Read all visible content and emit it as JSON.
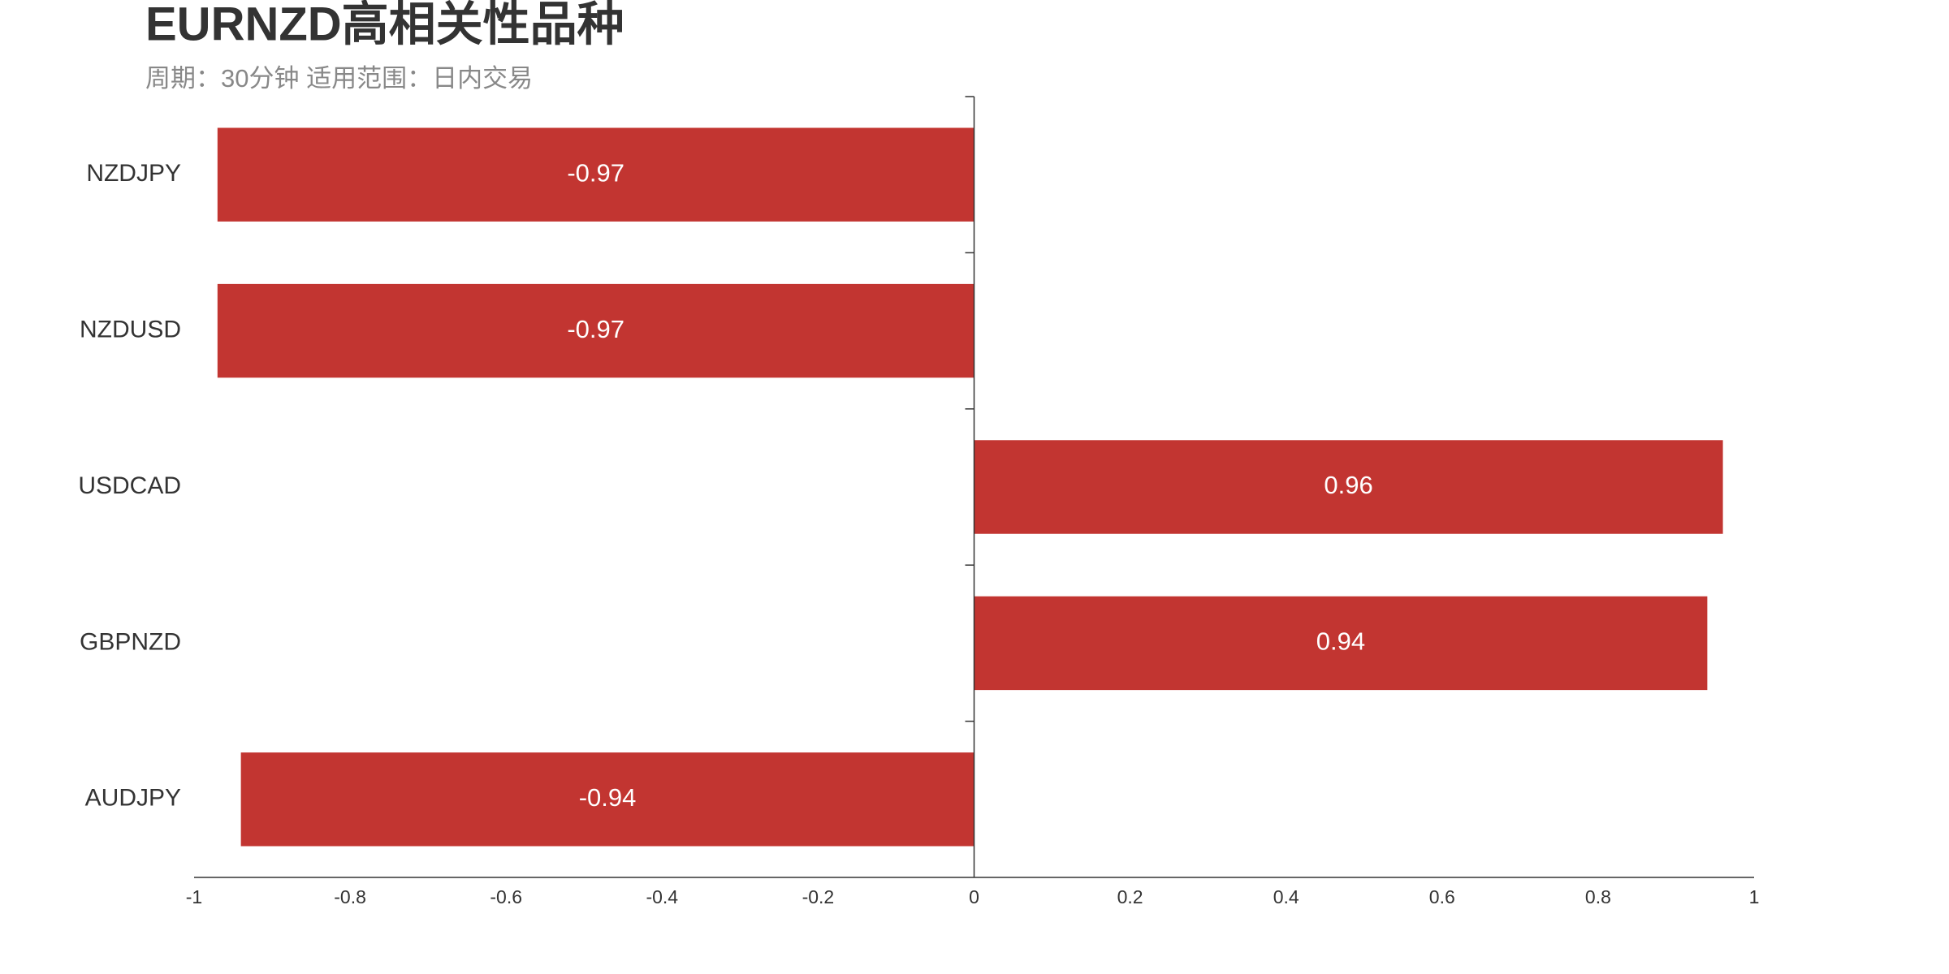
{
  "chart_data": {
    "type": "bar",
    "orientation": "horizontal",
    "title": "EURNZD高相关性品种",
    "subtitle": "周期：30分钟 适用范围：日内交易",
    "categories": [
      "NZDJPY",
      "NZDUSD",
      "USDCAD",
      "GBPNZD",
      "AUDJPY"
    ],
    "values": [
      -0.97,
      -0.97,
      0.96,
      0.94,
      -0.94
    ],
    "color": "#c23531",
    "xlim": [
      -1,
      1
    ],
    "xticks": [
      -1,
      -0.8,
      -0.6,
      -0.4,
      -0.2,
      0,
      0.2,
      0.4,
      0.6,
      0.8,
      1
    ],
    "grid": false
  }
}
